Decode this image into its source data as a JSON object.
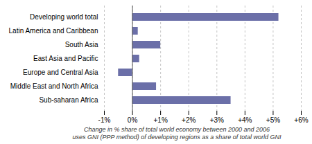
{
  "chart_data": {
    "type": "bar",
    "orientation": "horizontal",
    "categories": [
      "Developing world total",
      "Latin America and Caribbean",
      "South Asia",
      "East Asia and Pacific",
      "Europe and Central Asia",
      "Middle East and North Africa",
      "Sub-saharan Africa"
    ],
    "values": [
      5.2,
      0.2,
      1.0,
      0.25,
      -0.5,
      0.85,
      3.5
    ],
    "color": "#6b6fa8",
    "xlim": [
      -1,
      6
    ],
    "xticks": [
      {
        "value": -1,
        "label": "-1%"
      },
      {
        "value": 0,
        "label": "0%"
      },
      {
        "value": 1,
        "label": "+1%"
      },
      {
        "value": 2,
        "label": "+2%"
      },
      {
        "value": 3,
        "label": "+3%"
      },
      {
        "value": 4,
        "label": "+4%"
      },
      {
        "value": 5,
        "label": "+5%"
      },
      {
        "value": 6,
        "label": "+6%"
      }
    ],
    "xlabel": "Change in % share of total world economy between 2000 and 2006\nuses GNI (PPP method) of developing regions as a share of total world GNI",
    "grid": true
  }
}
